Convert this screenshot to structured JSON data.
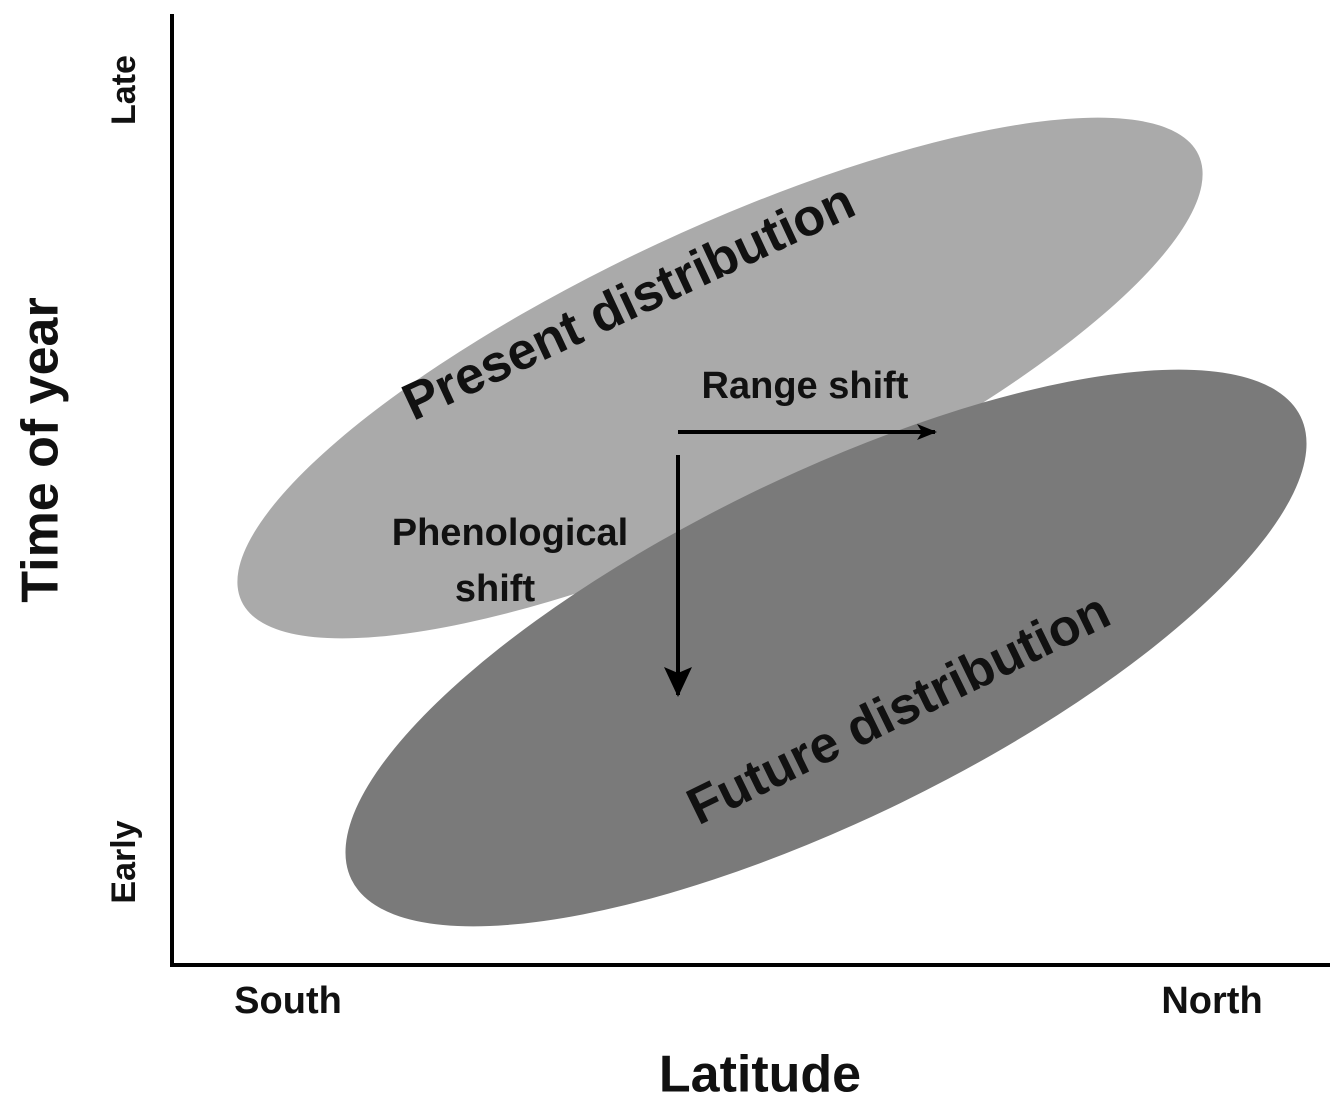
{
  "axes": {
    "x_label": "Latitude",
    "y_label": "Time of year",
    "x_ticks": [
      "South",
      "North"
    ],
    "y_ticks": [
      "Early",
      "Late"
    ]
  },
  "regions": [
    {
      "label": "Present distribution"
    },
    {
      "label": "Future distribution"
    }
  ],
  "arrows": [
    {
      "label": [
        "Range shift"
      ]
    },
    {
      "label": [
        "Phenological",
        "shift"
      ]
    }
  ]
}
